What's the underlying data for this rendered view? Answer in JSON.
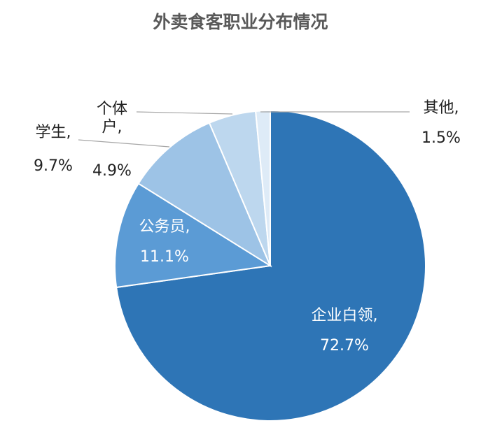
{
  "chart_data": {
    "type": "pie",
    "title": "外卖食客职业分布情况",
    "categories": [
      "企业白领,",
      "公务员,",
      "学生,",
      "个体户,",
      "其他,"
    ],
    "values": [
      72.7,
      11.1,
      9.7,
      4.9,
      1.5
    ],
    "value_labels": [
      "72.7%",
      "11.1%",
      "9.7%",
      "4.9%",
      "1.5%"
    ],
    "colors": [
      "#2e75b6",
      "#5b9bd5",
      "#9dc3e6",
      "#bdd7ee",
      "#deebf7"
    ]
  }
}
